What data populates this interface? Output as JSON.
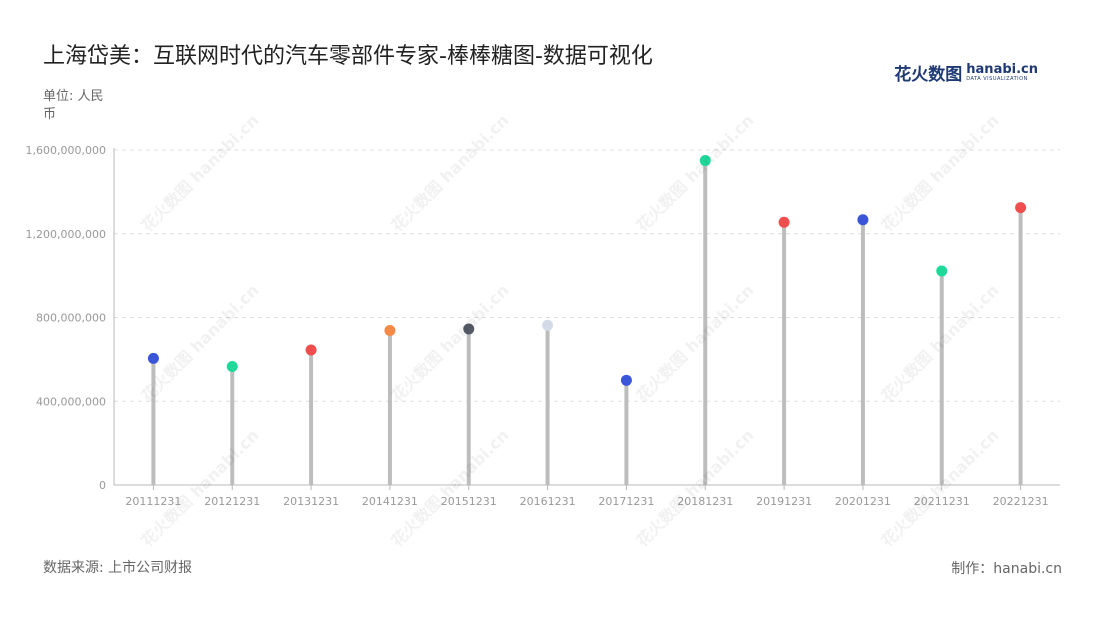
{
  "title": "上海岱美：互联网时代的汽车零部件专家-棒棒糖图-数据可视化",
  "unit": "单位: 人民币",
  "source": "数据来源: 上市公司财报",
  "credit": "制作：hanabi.cn",
  "logo": {
    "cn": "花火数图",
    "en": "hanabi.cn",
    "sub": "DATA VISUALIZATION"
  },
  "watermark": "花火数图 hanabi.cn",
  "chart_data": {
    "type": "lollipop",
    "categories": [
      "20111231",
      "20121231",
      "20131231",
      "20141231",
      "20151231",
      "20161231",
      "20171231",
      "20181231",
      "20191231",
      "20201231",
      "20211231",
      "20221231"
    ],
    "values": [
      605000000,
      566000000,
      645000000,
      738000000,
      745000000,
      763000000,
      500000000,
      1550000000,
      1255000000,
      1267000000,
      1022000000,
      1325000000
    ],
    "colors": [
      "#3b55d9",
      "#1fd99a",
      "#f04e4e",
      "#f58a45",
      "#555a66",
      "#d4dbe8",
      "#3b55d9",
      "#1fd99a",
      "#f04e4e",
      "#3b55d9",
      "#1fd99a",
      "#f04e4e"
    ],
    "stem_color": "#bdbdbd",
    "ylim": [
      0,
      1600000000
    ],
    "yticks": [
      0,
      400000000,
      800000000,
      1200000000,
      1600000000
    ],
    "ytick_labels": [
      "0",
      "400,000,000",
      "800,000,000",
      "1,200,000,000",
      "1,600,000,000"
    ],
    "grid": true
  }
}
